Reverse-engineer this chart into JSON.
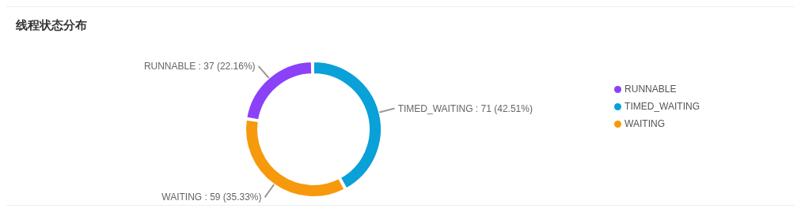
{
  "chart_data": {
    "type": "donut",
    "title": "线程状态分布",
    "categories": [
      "TIMED_WAITING",
      "WAITING",
      "RUNNABLE"
    ],
    "values": [
      71,
      59,
      37
    ],
    "colors": [
      "#0aa0d8",
      "#f7990c",
      "#8a41f7"
    ],
    "value_labels": [
      "TIMED_WAITING : 71 (42.51%)",
      "WAITING : 59 (35.33%)",
      "RUNNABLE : 37 (22.16%)"
    ],
    "legend": "right"
  }
}
